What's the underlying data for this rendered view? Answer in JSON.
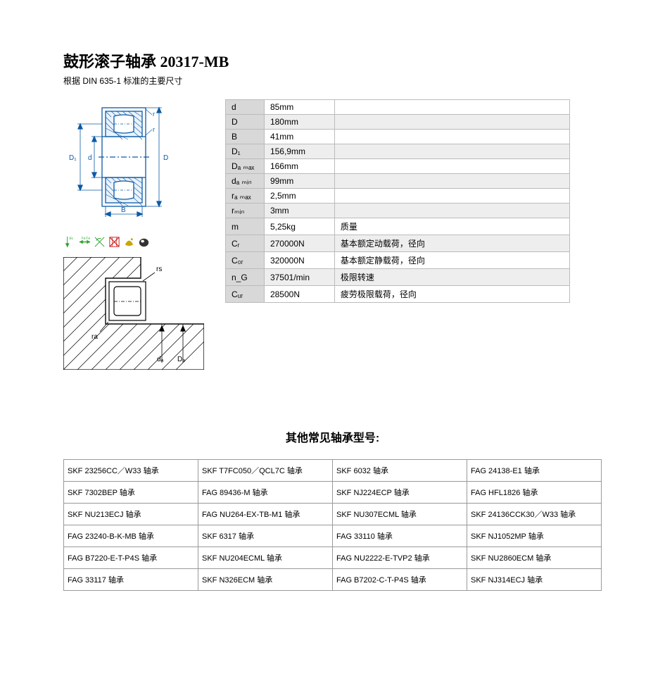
{
  "title": "鼓形滚子轴承 20317-MB",
  "subtitle": "根据 DIN 635-1 标准的主要尺寸",
  "specs": [
    {
      "label": "d",
      "value": "85mm",
      "desc": "",
      "grey": false
    },
    {
      "label": "D",
      "value": "180mm",
      "desc": "",
      "grey": true
    },
    {
      "label": "B",
      "value": "41mm",
      "desc": "",
      "grey": false
    },
    {
      "label": "D₁",
      "value": "156,9mm",
      "desc": "",
      "grey": true
    },
    {
      "label": "Dₐ ₘₐₓ",
      "value": "166mm",
      "desc": "",
      "grey": false
    },
    {
      "label": "dₐ ₘᵢₙ",
      "value": "99mm",
      "desc": "",
      "grey": true
    },
    {
      "label": "rₐ ₘₐₓ",
      "value": "2,5mm",
      "desc": "",
      "grey": false
    },
    {
      "label": "rₘᵢₙ",
      "value": "3mm",
      "desc": "",
      "grey": true
    },
    {
      "label": "m",
      "value": "5,25kg",
      "desc": "质量",
      "grey": false
    },
    {
      "label": "Cᵣ",
      "value": "270000N",
      "desc": "基本额定动载荷，径向",
      "grey": true
    },
    {
      "label": "C₀ᵣ",
      "value": "320000N",
      "desc": "基本额定静载荷，径向",
      "grey": false
    },
    {
      "label": "n_G",
      "value": "37501/min",
      "desc": "极限转速",
      "grey": true
    },
    {
      "label": "Cᵤᵣ",
      "value": "28500N",
      "desc": "疲劳极限载荷，径向",
      "grey": false
    }
  ],
  "diagram_labels": {
    "D1": "D₁",
    "d": "d",
    "D": "D",
    "B": "B",
    "r": "r"
  },
  "abutment_labels": {
    "rs": "rs",
    "ra": "ra",
    "da": "dₐ",
    "Da": "Dₐ"
  },
  "other_models_title": "其他常见轴承型号:",
  "models": [
    [
      "SKF 23256CC／W33 轴承",
      "SKF T7FC050／QCL7C 轴承",
      "SKF 6032 轴承",
      "FAG 24138-E1 轴承"
    ],
    [
      "SKF 7302BEP 轴承",
      "FAG 89436-M 轴承",
      "SKF NJ224ECP 轴承",
      "FAG HFL1826 轴承"
    ],
    [
      "SKF NU213ECJ 轴承",
      "FAG NU264-EX-TB-M1 轴承",
      "SKF NU307ECML 轴承",
      "SKF 24136CCK30／W33 轴承"
    ],
    [
      "FAG 23240-B-K-MB 轴承",
      "SKF 6317 轴承",
      "FAG 33110 轴承",
      "SKF NJ1052MP 轴承"
    ],
    [
      "FAG B7220-E-T-P4S 轴承",
      "SKF NU204ECML 轴承",
      "FAG NU2222-E-TVP2 轴承",
      "SKF NU2860ECM 轴承"
    ],
    [
      "FAG 33117 轴承",
      "SKF N326ECM 轴承",
      "FAG B7202-C-T-P4S 轴承",
      "SKF NJ314ECJ 轴承"
    ]
  ],
  "colors": {
    "diagram_line": "#0b5aa6",
    "hatch": "#0b5aa6",
    "dim_text": "#0b5aa6",
    "icon_green": "#2aa02a",
    "icon_red": "#cc2222",
    "icon_yellow": "#c9a600"
  }
}
